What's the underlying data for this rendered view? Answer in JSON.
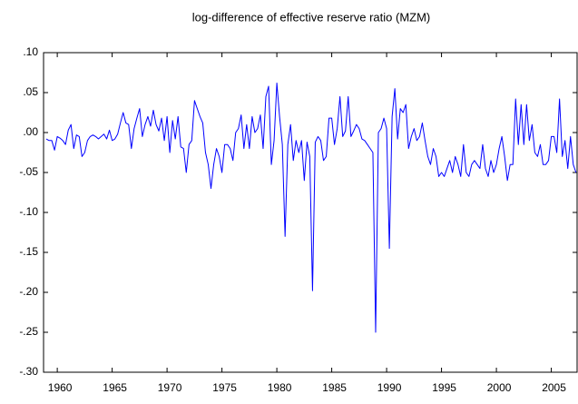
{
  "chart_data": {
    "type": "line",
    "title": "log-difference of effective reserve ratio (MZM)",
    "x": [
      1959,
      1959.25,
      1959.5,
      1959.75,
      1960,
      1960.25,
      1960.5,
      1960.75,
      1961,
      1961.25,
      1961.5,
      1961.75,
      1962,
      1962.25,
      1962.5,
      1962.75,
      1963,
      1963.25,
      1963.5,
      1963.75,
      1964,
      1964.25,
      1964.5,
      1964.75,
      1965,
      1965.25,
      1965.5,
      1965.75,
      1966,
      1966.25,
      1966.5,
      1966.75,
      1967,
      1967.25,
      1967.5,
      1967.75,
      1968,
      1968.25,
      1968.5,
      1968.75,
      1969,
      1969.25,
      1969.5,
      1969.75,
      1970,
      1970.25,
      1970.5,
      1970.75,
      1971,
      1971.25,
      1971.5,
      1971.75,
      1972,
      1972.25,
      1972.5,
      1972.75,
      1973,
      1973.25,
      1973.5,
      1973.75,
      1974,
      1974.25,
      1974.5,
      1974.75,
      1975,
      1975.25,
      1975.5,
      1975.75,
      1976,
      1976.25,
      1976.5,
      1976.75,
      1977,
      1977.25,
      1977.5,
      1977.75,
      1978,
      1978.25,
      1978.5,
      1978.75,
      1979,
      1979.25,
      1979.5,
      1979.75,
      1980,
      1980.25,
      1980.5,
      1980.75,
      1981,
      1981.25,
      1981.5,
      1981.75,
      1982,
      1982.25,
      1982.5,
      1982.75,
      1983,
      1983.25,
      1983.5,
      1983.75,
      1984,
      1984.25,
      1984.5,
      1984.75,
      1985,
      1985.25,
      1985.5,
      1985.75,
      1986,
      1986.25,
      1986.5,
      1986.75,
      1987,
      1987.25,
      1987.5,
      1987.75,
      1988,
      1988.25,
      1988.5,
      1988.75,
      1989,
      1989.25,
      1989.5,
      1989.75,
      1990,
      1990.25,
      1990.5,
      1990.75,
      1991,
      1991.25,
      1991.5,
      1991.75,
      1992,
      1992.25,
      1992.5,
      1992.75,
      1993,
      1993.25,
      1993.5,
      1993.75,
      1994,
      1994.25,
      1994.5,
      1994.75,
      1995,
      1995.25,
      1995.5,
      1995.75,
      1996,
      1996.25,
      1996.5,
      1996.75,
      1997,
      1997.25,
      1997.5,
      1997.75,
      1998,
      1998.25,
      1998.5,
      1998.75,
      1999,
      1999.25,
      1999.5,
      1999.75,
      2000,
      2000.25,
      2000.5,
      2000.75,
      2001,
      2001.25,
      2001.5,
      2001.75,
      2002,
      2002.25,
      2002.5,
      2002.75,
      2003,
      2003.25,
      2003.5,
      2003.75,
      2004,
      2004.25,
      2004.5,
      2004.75,
      2005,
      2005.25,
      2005.5,
      2005.75,
      2006,
      2006.25,
      2006.5,
      2006.75,
      2007,
      2007.25
    ],
    "series": [
      {
        "color": "#0000ff",
        "values": [
          -0.008,
          -0.01,
          -0.01,
          -0.022,
          -0.005,
          -0.007,
          -0.01,
          -0.015,
          0.003,
          0.01,
          -0.02,
          -0.003,
          -0.005,
          -0.03,
          -0.025,
          -0.01,
          -0.005,
          -0.003,
          -0.005,
          -0.008,
          -0.005,
          -0.002,
          -0.008,
          0.003,
          -0.01,
          -0.008,
          -0.002,
          0.012,
          0.025,
          0.012,
          0.01,
          -0.02,
          0.005,
          0.018,
          0.03,
          -0.005,
          0.01,
          0.02,
          0.008,
          0.028,
          0.01,
          0.002,
          0.018,
          -0.01,
          0.02,
          -0.025,
          0.015,
          -0.008,
          0.02,
          -0.018,
          -0.02,
          -0.05,
          -0.015,
          -0.01,
          0.04,
          0.03,
          0.02,
          0.012,
          -0.025,
          -0.04,
          -0.07,
          -0.04,
          -0.02,
          -0.03,
          -0.05,
          -0.015,
          -0.015,
          -0.02,
          -0.035,
          0.0,
          0.005,
          0.022,
          -0.02,
          0.01,
          -0.02,
          0.02,
          0.0,
          0.005,
          0.022,
          -0.02,
          0.045,
          0.058,
          -0.04,
          -0.01,
          0.062,
          0.02,
          -0.015,
          -0.13,
          -0.015,
          0.01,
          -0.035,
          -0.01,
          -0.025,
          -0.01,
          -0.06,
          -0.012,
          -0.03,
          -0.198,
          -0.012,
          -0.005,
          -0.01,
          -0.035,
          -0.03,
          0.018,
          0.018,
          -0.015,
          0.005,
          0.045,
          -0.005,
          0.002,
          0.045,
          -0.005,
          0.002,
          0.01,
          0.005,
          -0.008,
          -0.01,
          -0.015,
          -0.02,
          -0.025,
          -0.25,
          0.0,
          0.005,
          0.018,
          0.005,
          -0.145,
          0.02,
          0.055,
          -0.008,
          0.03,
          0.025,
          0.035,
          -0.02,
          -0.005,
          0.005,
          -0.01,
          -0.005,
          0.012,
          -0.01,
          -0.03,
          -0.04,
          -0.02,
          -0.03,
          -0.055,
          -0.05,
          -0.055,
          -0.045,
          -0.035,
          -0.05,
          -0.03,
          -0.04,
          -0.055,
          -0.015,
          -0.05,
          -0.055,
          -0.04,
          -0.035,
          -0.04,
          -0.045,
          -0.015,
          -0.045,
          -0.055,
          -0.035,
          -0.05,
          -0.04,
          -0.02,
          -0.005,
          -0.03,
          -0.06,
          -0.04,
          -0.04,
          0.042,
          -0.015,
          0.035,
          -0.015,
          0.035,
          -0.01,
          0.01,
          -0.025,
          -0.03,
          -0.015,
          -0.04,
          -0.04,
          -0.035,
          -0.005,
          -0.005,
          -0.025,
          0.042,
          -0.03,
          -0.01,
          -0.045,
          -0.005,
          -0.04,
          -0.05
        ]
      }
    ],
    "xlim": [
      1958.75,
      2007.35
    ],
    "xticks": [
      1960,
      1965,
      1970,
      1975,
      1980,
      1985,
      1990,
      1995,
      2000,
      2005
    ],
    "ylim": [
      -0.3,
      0.1
    ],
    "yticks": [
      {
        "value": 0.1,
        "label": ".10"
      },
      {
        "value": 0.05,
        "label": ".05"
      },
      {
        "value": 0.0,
        "label": ".00"
      },
      {
        "value": -0.05,
        "label": "-.05"
      },
      {
        "value": -0.1,
        "label": "-.10"
      },
      {
        "value": -0.15,
        "label": "-.15"
      },
      {
        "value": -0.2,
        "label": "-.20"
      },
      {
        "value": -0.25,
        "label": "-.25"
      },
      {
        "value": -0.3,
        "label": "-.30"
      }
    ],
    "grid": false
  }
}
